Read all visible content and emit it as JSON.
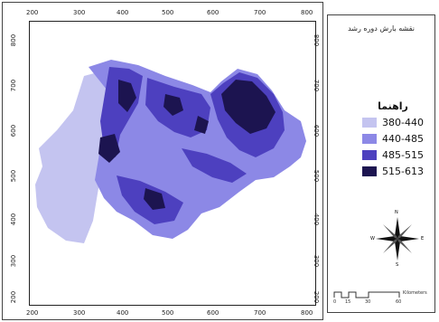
{
  "map": {
    "x_ticks_top": [
      "200",
      "300",
      "400",
      "500",
      "600",
      "700",
      "800"
    ],
    "x_ticks_bottom": [
      "200",
      "300",
      "400",
      "500",
      "600",
      "700",
      "800"
    ],
    "y_ticks_left": [
      "800",
      "700",
      "600",
      "500",
      "400",
      "300",
      "200"
    ],
    "y_ticks_right": [
      "800",
      "700",
      "600",
      "500",
      "400",
      "300",
      "200"
    ]
  },
  "legend": {
    "title": "نقشه بارش دوره رشد",
    "heading": "راهنما",
    "items": [
      {
        "label": "380-440",
        "color": "#c4c4f0"
      },
      {
        "label": "440-485",
        "color": "#8c88e6"
      },
      {
        "label": "485-515",
        "color": "#4d40bf"
      },
      {
        "label": "515-613",
        "color": "#1c1450"
      }
    ]
  },
  "compass": {
    "n": "N",
    "s": "S",
    "e": "E",
    "w": "W"
  },
  "scale": {
    "ticks": [
      "0",
      "15",
      "30",
      "60"
    ],
    "unit": "Kilometers"
  }
}
